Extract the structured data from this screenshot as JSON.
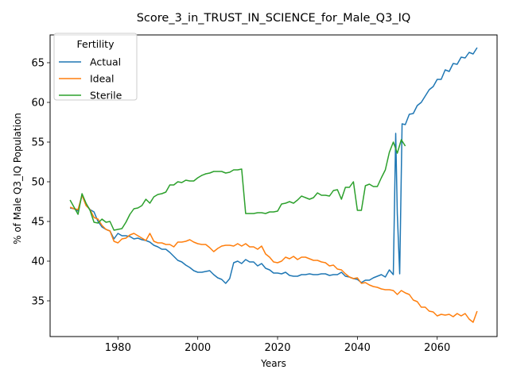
{
  "chart_data": {
    "type": "line",
    "title": "Score_3_in_TRUST_IN_SCIENCE_for_Male_Q3_IQ",
    "xlabel": "Years",
    "ylabel": "% of Male Q3_IQ Population",
    "xlim": [
      1963,
      2075
    ],
    "ylim": [
      30.5,
      68.5
    ],
    "xticks": [
      1980,
      2000,
      2020,
      2040,
      2060
    ],
    "yticks": [
      35,
      40,
      45,
      50,
      55,
      60,
      65
    ],
    "grid": false,
    "legend": {
      "title": "Fertility",
      "position": "top-left"
    },
    "series": [
      {
        "name": "Actual",
        "color": "#1f77b4",
        "points": [
          [
            1968,
            46.7
          ],
          [
            1969,
            46.6
          ],
          [
            1970,
            46.3
          ],
          [
            1971,
            48.3
          ],
          [
            1972,
            47.2
          ],
          [
            1973,
            46.5
          ],
          [
            1974,
            46.2
          ],
          [
            1975,
            45.0
          ],
          [
            1976,
            44.3
          ],
          [
            1977,
            44.0
          ],
          [
            1978,
            43.8
          ],
          [
            1979,
            42.8
          ],
          [
            1980,
            43.5
          ],
          [
            1981,
            43.2
          ],
          [
            1982,
            43.2
          ],
          [
            1983,
            43.1
          ],
          [
            1984,
            42.8
          ],
          [
            1985,
            42.9
          ],
          [
            1986,
            42.7
          ],
          [
            1987,
            42.6
          ],
          [
            1988,
            42.4
          ],
          [
            1989,
            42.0
          ],
          [
            1990,
            41.8
          ],
          [
            1991,
            41.5
          ],
          [
            1992,
            41.5
          ],
          [
            1993,
            41.1
          ],
          [
            1994,
            40.6
          ],
          [
            1995,
            40.1
          ],
          [
            1996,
            39.9
          ],
          [
            1997,
            39.5
          ],
          [
            1998,
            39.2
          ],
          [
            1999,
            38.8
          ],
          [
            2000,
            38.6
          ],
          [
            2001,
            38.6
          ],
          [
            2002,
            38.7
          ],
          [
            2003,
            38.8
          ],
          [
            2004,
            38.3
          ],
          [
            2005,
            37.9
          ],
          [
            2006,
            37.7
          ],
          [
            2007,
            37.2
          ],
          [
            2008,
            37.8
          ],
          [
            2009,
            39.8
          ],
          [
            2010,
            40.0
          ],
          [
            2011,
            39.7
          ],
          [
            2012,
            40.2
          ],
          [
            2013,
            39.9
          ],
          [
            2014,
            39.9
          ],
          [
            2015,
            39.4
          ],
          [
            2016,
            39.7
          ],
          [
            2017,
            39.1
          ],
          [
            2018,
            38.9
          ],
          [
            2019,
            38.5
          ],
          [
            2020,
            38.5
          ],
          [
            2021,
            38.4
          ],
          [
            2022,
            38.6
          ],
          [
            2023,
            38.2
          ],
          [
            2024,
            38.1
          ],
          [
            2025,
            38.1
          ],
          [
            2026,
            38.3
          ],
          [
            2027,
            38.3
          ],
          [
            2028,
            38.4
          ],
          [
            2029,
            38.3
          ],
          [
            2030,
            38.3
          ],
          [
            2031,
            38.4
          ],
          [
            2032,
            38.4
          ],
          [
            2033,
            38.2
          ],
          [
            2034,
            38.3
          ],
          [
            2035,
            38.3
          ],
          [
            2036,
            38.6
          ],
          [
            2037,
            38.1
          ],
          [
            2038,
            38.0
          ],
          [
            2039,
            37.8
          ],
          [
            2040,
            37.7
          ],
          [
            2041,
            37.3
          ],
          [
            2042,
            37.6
          ],
          [
            2043,
            37.6
          ],
          [
            2044,
            37.9
          ],
          [
            2045,
            38.1
          ],
          [
            2046,
            38.3
          ],
          [
            2047,
            38.0
          ],
          [
            2048,
            38.9
          ],
          [
            2049,
            38.3
          ],
          [
            2049.6,
            56.1
          ],
          [
            2050,
            46.0
          ],
          [
            2050.6,
            38.4
          ],
          [
            2051.2,
            57.3
          ],
          [
            2052,
            57.2
          ],
          [
            2053,
            58.5
          ],
          [
            2054,
            58.6
          ],
          [
            2055,
            59.6
          ],
          [
            2056,
            60.0
          ],
          [
            2057,
            60.8
          ],
          [
            2058,
            61.6
          ],
          [
            2059,
            62.0
          ],
          [
            2060,
            62.9
          ],
          [
            2061,
            62.9
          ],
          [
            2062,
            64.1
          ],
          [
            2063,
            63.9
          ],
          [
            2064,
            64.9
          ],
          [
            2065,
            64.8
          ],
          [
            2066,
            65.7
          ],
          [
            2067,
            65.6
          ],
          [
            2068,
            66.3
          ],
          [
            2069,
            66.1
          ],
          [
            2070,
            66.9
          ]
        ]
      },
      {
        "name": "Ideal",
        "color": "#ff7f0e",
        "points": [
          [
            1968,
            46.8
          ],
          [
            1969,
            46.6
          ],
          [
            1970,
            46.5
          ],
          [
            1971,
            48.3
          ],
          [
            1972,
            47.0
          ],
          [
            1973,
            46.5
          ],
          [
            1974,
            45.5
          ],
          [
            1975,
            45.3
          ],
          [
            1976,
            44.5
          ],
          [
            1977,
            44.0
          ],
          [
            1978,
            43.8
          ],
          [
            1979,
            42.5
          ],
          [
            1980,
            42.3
          ],
          [
            1981,
            42.8
          ],
          [
            1982,
            42.9
          ],
          [
            1983,
            43.3
          ],
          [
            1984,
            43.5
          ],
          [
            1985,
            43.2
          ],
          [
            1986,
            42.9
          ],
          [
            1987,
            42.6
          ],
          [
            1988,
            43.5
          ],
          [
            1989,
            42.5
          ],
          [
            1990,
            42.3
          ],
          [
            1991,
            42.3
          ],
          [
            1992,
            42.1
          ],
          [
            1993,
            42.1
          ],
          [
            1994,
            41.8
          ],
          [
            1995,
            42.4
          ],
          [
            1996,
            42.4
          ],
          [
            1997,
            42.5
          ],
          [
            1998,
            42.7
          ],
          [
            1999,
            42.4
          ],
          [
            2000,
            42.2
          ],
          [
            2001,
            42.1
          ],
          [
            2002,
            42.1
          ],
          [
            2003,
            41.7
          ],
          [
            2004,
            41.2
          ],
          [
            2005,
            41.6
          ],
          [
            2006,
            41.9
          ],
          [
            2007,
            42.0
          ],
          [
            2008,
            42.0
          ],
          [
            2009,
            41.9
          ],
          [
            2010,
            42.2
          ],
          [
            2011,
            41.9
          ],
          [
            2012,
            42.2
          ],
          [
            2013,
            41.8
          ],
          [
            2014,
            41.8
          ],
          [
            2015,
            41.5
          ],
          [
            2016,
            41.9
          ],
          [
            2017,
            40.9
          ],
          [
            2018,
            40.5
          ],
          [
            2019,
            39.9
          ],
          [
            2020,
            39.8
          ],
          [
            2021,
            40.0
          ],
          [
            2022,
            40.5
          ],
          [
            2023,
            40.3
          ],
          [
            2024,
            40.6
          ],
          [
            2025,
            40.2
          ],
          [
            2026,
            40.5
          ],
          [
            2027,
            40.5
          ],
          [
            2028,
            40.3
          ],
          [
            2029,
            40.1
          ],
          [
            2030,
            40.1
          ],
          [
            2031,
            39.9
          ],
          [
            2032,
            39.8
          ],
          [
            2033,
            39.4
          ],
          [
            2034,
            39.5
          ],
          [
            2035,
            39.0
          ],
          [
            2036,
            38.9
          ],
          [
            2037,
            38.4
          ],
          [
            2038,
            38.0
          ],
          [
            2039,
            37.8
          ],
          [
            2040,
            37.9
          ],
          [
            2041,
            37.2
          ],
          [
            2042,
            37.3
          ],
          [
            2043,
            37.0
          ],
          [
            2044,
            36.8
          ],
          [
            2045,
            36.7
          ],
          [
            2046,
            36.5
          ],
          [
            2047,
            36.4
          ],
          [
            2048,
            36.4
          ],
          [
            2049,
            36.3
          ],
          [
            2050,
            35.8
          ],
          [
            2051,
            36.3
          ],
          [
            2052,
            36.0
          ],
          [
            2053,
            35.8
          ],
          [
            2054,
            35.1
          ],
          [
            2055,
            34.9
          ],
          [
            2056,
            34.2
          ],
          [
            2057,
            34.2
          ],
          [
            2058,
            33.7
          ],
          [
            2059,
            33.6
          ],
          [
            2060,
            33.1
          ],
          [
            2061,
            33.3
          ],
          [
            2062,
            33.2
          ],
          [
            2063,
            33.3
          ],
          [
            2064,
            33.0
          ],
          [
            2065,
            33.4
          ],
          [
            2066,
            33.1
          ],
          [
            2067,
            33.4
          ],
          [
            2068,
            32.7
          ],
          [
            2069,
            32.3
          ],
          [
            2070,
            33.7
          ]
        ]
      },
      {
        "name": "Sterile",
        "color": "#2ca02c",
        "points": [
          [
            1968,
            47.7
          ],
          [
            1969,
            46.8
          ],
          [
            1970,
            45.9
          ],
          [
            1971,
            48.5
          ],
          [
            1972,
            47.3
          ],
          [
            1973,
            46.4
          ],
          [
            1974,
            44.9
          ],
          [
            1975,
            44.8
          ],
          [
            1976,
            45.3
          ],
          [
            1977,
            44.9
          ],
          [
            1978,
            45.0
          ],
          [
            1979,
            43.9
          ],
          [
            1980,
            44.0
          ],
          [
            1981,
            44.1
          ],
          [
            1982,
            44.9
          ],
          [
            1983,
            45.9
          ],
          [
            1984,
            46.6
          ],
          [
            1985,
            46.7
          ],
          [
            1986,
            47.0
          ],
          [
            1987,
            47.8
          ],
          [
            1988,
            47.3
          ],
          [
            1989,
            48.1
          ],
          [
            1990,
            48.4
          ],
          [
            1991,
            48.5
          ],
          [
            1992,
            48.7
          ],
          [
            1993,
            49.6
          ],
          [
            1994,
            49.6
          ],
          [
            1995,
            50.0
          ],
          [
            1996,
            49.9
          ],
          [
            1997,
            50.2
          ],
          [
            1998,
            50.1
          ],
          [
            1999,
            50.1
          ],
          [
            2000,
            50.5
          ],
          [
            2001,
            50.8
          ],
          [
            2002,
            51.0
          ],
          [
            2003,
            51.1
          ],
          [
            2004,
            51.3
          ],
          [
            2005,
            51.3
          ],
          [
            2006,
            51.3
          ],
          [
            2007,
            51.1
          ],
          [
            2008,
            51.2
          ],
          [
            2009,
            51.5
          ],
          [
            2010,
            51.5
          ],
          [
            2011,
            51.6
          ],
          [
            2012,
            46.0
          ],
          [
            2013,
            46.0
          ],
          [
            2014,
            46.0
          ],
          [
            2015,
            46.1
          ],
          [
            2016,
            46.1
          ],
          [
            2017,
            46.0
          ],
          [
            2018,
            46.2
          ],
          [
            2019,
            46.2
          ],
          [
            2020,
            46.3
          ],
          [
            2021,
            47.2
          ],
          [
            2022,
            47.3
          ],
          [
            2023,
            47.5
          ],
          [
            2024,
            47.3
          ],
          [
            2025,
            47.7
          ],
          [
            2026,
            48.2
          ],
          [
            2027,
            48.0
          ],
          [
            2028,
            47.8
          ],
          [
            2029,
            48.0
          ],
          [
            2030,
            48.6
          ],
          [
            2031,
            48.3
          ],
          [
            2032,
            48.3
          ],
          [
            2033,
            48.2
          ],
          [
            2034,
            48.9
          ],
          [
            2035,
            49.0
          ],
          [
            2036,
            47.8
          ],
          [
            2037,
            49.3
          ],
          [
            2038,
            49.3
          ],
          [
            2039,
            50.0
          ],
          [
            2040,
            46.4
          ],
          [
            2041,
            46.4
          ],
          [
            2042,
            49.5
          ],
          [
            2043,
            49.7
          ],
          [
            2044,
            49.4
          ],
          [
            2045,
            49.4
          ],
          [
            2046,
            50.5
          ],
          [
            2047,
            51.5
          ],
          [
            2048,
            53.7
          ],
          [
            2049,
            55.0
          ],
          [
            2050,
            53.6
          ],
          [
            2051,
            55.3
          ],
          [
            2052,
            54.5
          ]
        ]
      }
    ]
  }
}
